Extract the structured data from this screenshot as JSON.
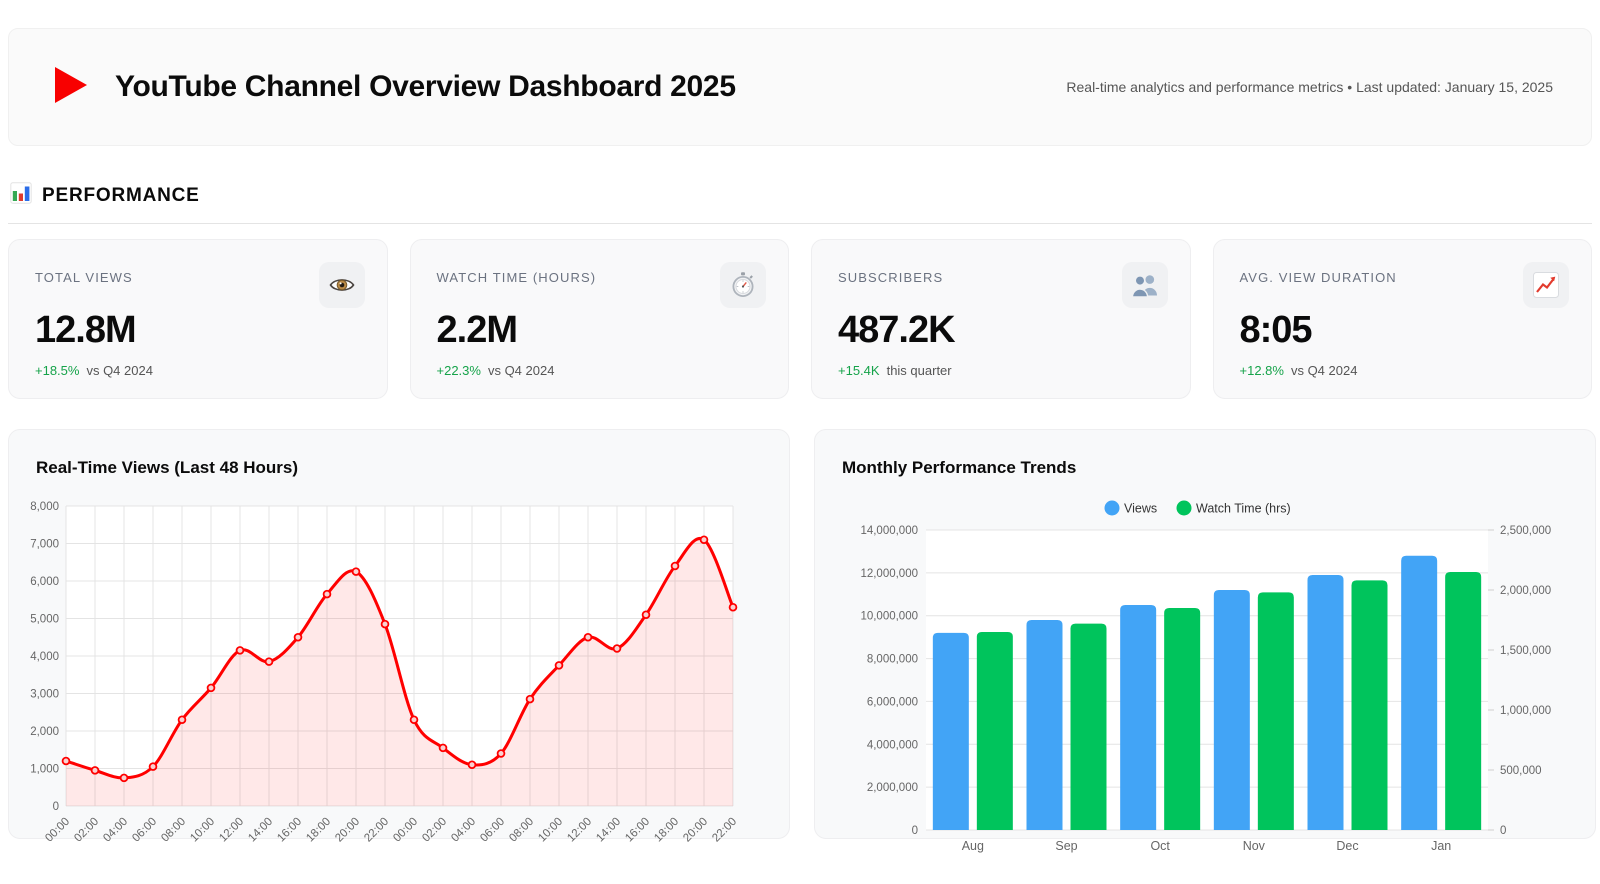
{
  "header": {
    "title": "YouTube Channel Overview Dashboard 2025",
    "subtitle": "Real-time analytics and performance metrics • Last updated: January 15, 2025"
  },
  "section": {
    "title": "PERFORMANCE",
    "icon": "bar-chart-icon"
  },
  "kpis": [
    {
      "label": "TOTAL VIEWS",
      "value": "12.8M",
      "delta": "+18.5%",
      "delta_note": "vs Q4 2024",
      "icon": "eye-icon"
    },
    {
      "label": "WATCH TIME (HOURS)",
      "value": "2.2M",
      "delta": "+22.3%",
      "delta_note": "vs Q4 2024",
      "icon": "stopwatch-icon"
    },
    {
      "label": "SUBSCRIBERS",
      "value": "487.2K",
      "delta": "+15.4K",
      "delta_note": "this quarter",
      "icon": "people-icon"
    },
    {
      "label": "AVG. VIEW DURATION",
      "value": "8:05",
      "delta": "+12.8%",
      "delta_note": "vs Q4 2024",
      "icon": "chart-up-icon"
    }
  ],
  "colors": {
    "brand_red": "#f80000",
    "line_red": "#ff0000",
    "line_fill": "rgba(255,0,0,0.09)",
    "bar_blue": "#42a4f6",
    "bar_green": "#00c45c",
    "delta_green": "#16a34a",
    "grid": "#e4e4e4",
    "tick_text": "#666666",
    "panel_bg": "#f8f9fa"
  },
  "chart_data": [
    {
      "type": "line",
      "title": "Real-Time Views (Last 48 Hours)",
      "x": [
        "00:00",
        "02:00",
        "04:00",
        "06:00",
        "08:00",
        "10:00",
        "12:00",
        "14:00",
        "16:00",
        "18:00",
        "20:00",
        "22:00",
        "00:00",
        "02:00",
        "04:00",
        "06:00",
        "08:00",
        "10:00",
        "12:00",
        "14:00",
        "16:00",
        "18:00",
        "20:00",
        "22:00"
      ],
      "series": [
        {
          "name": "Views",
          "values": [
            1200,
            950,
            750,
            1050,
            2300,
            3150,
            4150,
            3850,
            4500,
            5650,
            6250,
            4850,
            2300,
            1550,
            1100,
            1400,
            2850,
            3750,
            4500,
            4200,
            5100,
            6400,
            7100,
            5300
          ]
        }
      ],
      "ylim": [
        0,
        8000
      ],
      "ytick_step": 1000,
      "grid": true,
      "legend_position": "none"
    },
    {
      "type": "bar",
      "title": "Monthly Performance Trends",
      "categories": [
        "Aug",
        "Sep",
        "Oct",
        "Nov",
        "Dec",
        "Jan"
      ],
      "series": [
        {
          "name": "Views",
          "axis": "left",
          "color": "#42a4f6",
          "values": [
            9200000,
            9800000,
            10500000,
            11200000,
            11900000,
            12800000
          ]
        },
        {
          "name": "Watch Time (hrs)",
          "axis": "right",
          "color": "#00c45c",
          "values": [
            1650000,
            1720000,
            1850000,
            1980000,
            2080000,
            2150000
          ]
        }
      ],
      "left_ylim": [
        0,
        14000000
      ],
      "left_tick_step": 2000000,
      "right_ylim": [
        0,
        2500000
      ],
      "right_tick_step": 500000,
      "grid": true,
      "legend_position": "top"
    }
  ]
}
